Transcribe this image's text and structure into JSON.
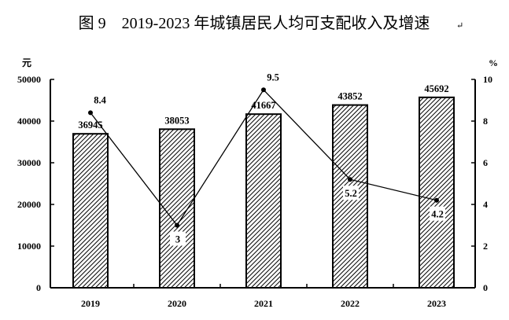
{
  "chart_data": {
    "type": "bar+line",
    "title": "图 9　2019-2023 年城镇居民人均可支配收入及增速",
    "title_mark": "↵",
    "categories": [
      "2019",
      "2020",
      "2021",
      "2022",
      "2023"
    ],
    "series": [
      {
        "name": "城镇居民人均可支配收入",
        "type": "bar",
        "axis": "left",
        "values": [
          36945,
          38053,
          41667,
          43852,
          45692
        ]
      },
      {
        "name": "增速",
        "type": "line",
        "axis": "right",
        "values": [
          8.4,
          3.0,
          9.5,
          5.2,
          4.2
        ]
      }
    ],
    "left_axis": {
      "unit": "元",
      "ylim": [
        0,
        50000
      ],
      "ticks": [
        "0",
        "10000",
        "20000",
        "30000",
        "40000",
        "50000"
      ]
    },
    "right_axis": {
      "unit": "%",
      "ylim": [
        0,
        10
      ],
      "ticks": [
        "0",
        "2",
        "4",
        "6",
        "8",
        "10"
      ]
    },
    "grid": false
  }
}
